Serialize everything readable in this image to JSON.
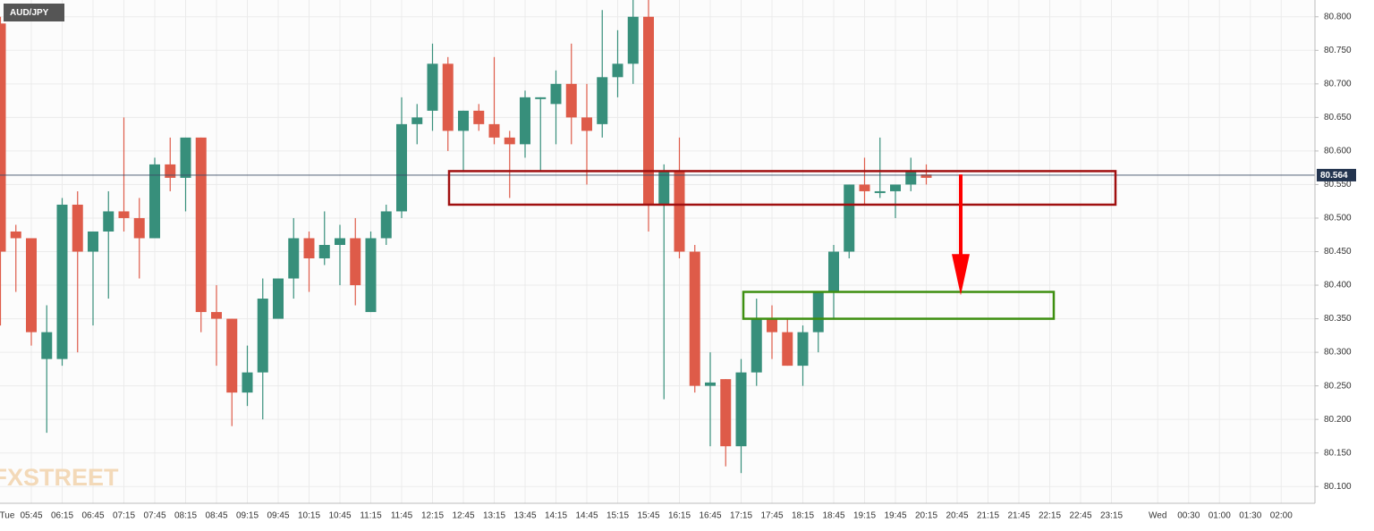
{
  "chart_data": {
    "type": "candlestick",
    "title": "AUD/JPY",
    "watermark": "FXSTREET",
    "up_color": "#378f7b",
    "down_color": "#de5b49",
    "x": [
      "05:15",
      "05:30",
      "05:45",
      "06:00",
      "06:15",
      "06:30",
      "06:45",
      "07:00",
      "07:15",
      "07:30",
      "07:45",
      "08:00",
      "08:15",
      "08:30",
      "08:45",
      "09:00",
      "09:15",
      "09:30",
      "09:45",
      "10:00",
      "10:15",
      "10:30",
      "10:45",
      "11:00",
      "11:15",
      "11:30",
      "11:45",
      "12:00",
      "12:15",
      "12:30",
      "12:45",
      "13:00",
      "13:15",
      "13:30",
      "13:45",
      "14:00",
      "14:15",
      "14:30",
      "14:45",
      "15:00",
      "15:15",
      "15:30",
      "15:45",
      "16:00",
      "16:15",
      "16:30",
      "16:45",
      "17:00",
      "17:15",
      "17:30",
      "17:45",
      "18:00",
      "18:15",
      "18:30",
      "18:45",
      "19:00",
      "19:15",
      "19:30",
      "19:45",
      "20:00",
      "20:15"
    ],
    "open": [
      80.79,
      80.48,
      80.47,
      80.29,
      80.29,
      80.52,
      80.45,
      80.48,
      80.51,
      80.5,
      80.47,
      80.58,
      80.56,
      80.62,
      80.36,
      80.35,
      80.24,
      80.27,
      80.35,
      80.41,
      80.47,
      80.44,
      80.46,
      80.47,
      80.36,
      80.47,
      80.51,
      80.64,
      80.66,
      80.73,
      80.63,
      80.66,
      80.64,
      80.62,
      80.61,
      80.68,
      80.67,
      80.7,
      80.65,
      80.64,
      80.71,
      80.73,
      80.8,
      80.52,
      80.57,
      80.45,
      80.25,
      80.26,
      80.16,
      80.27,
      80.35,
      80.33,
      80.28,
      80.33,
      80.39,
      80.45,
      80.55,
      80.54,
      80.54,
      80.55,
      80.565
    ],
    "high": [
      80.8,
      80.49,
      80.47,
      80.37,
      80.53,
      80.54,
      80.48,
      80.54,
      80.65,
      80.53,
      80.59,
      80.62,
      80.62,
      80.62,
      80.4,
      80.35,
      80.31,
      80.41,
      80.41,
      80.5,
      80.48,
      80.51,
      80.49,
      80.5,
      80.48,
      80.52,
      80.68,
      80.67,
      80.76,
      80.74,
      80.66,
      80.67,
      80.74,
      80.63,
      80.69,
      80.68,
      80.72,
      80.76,
      80.7,
      80.81,
      80.78,
      80.83,
      80.83,
      80.58,
      80.62,
      80.46,
      80.3,
      80.26,
      80.29,
      80.38,
      80.37,
      80.35,
      80.34,
      80.39,
      80.46,
      80.55,
      80.59,
      80.62,
      80.55,
      80.59,
      80.58
    ],
    "low": [
      80.34,
      80.39,
      80.31,
      80.18,
      80.28,
      80.3,
      80.34,
      80.38,
      80.48,
      80.41,
      80.47,
      80.54,
      80.51,
      80.33,
      80.28,
      80.19,
      80.22,
      80.2,
      80.35,
      80.38,
      80.39,
      80.43,
      80.4,
      80.37,
      80.36,
      80.46,
      80.5,
      80.61,
      80.63,
      80.6,
      80.57,
      80.63,
      80.61,
      80.53,
      80.59,
      80.57,
      80.61,
      80.61,
      80.55,
      80.62,
      80.68,
      80.7,
      80.48,
      80.23,
      80.44,
      80.24,
      80.16,
      80.13,
      80.12,
      80.25,
      80.29,
      80.28,
      80.25,
      80.3,
      80.35,
      80.44,
      80.52,
      80.53,
      80.5,
      80.54,
      80.55
    ],
    "close": [
      80.45,
      80.47,
      80.33,
      80.33,
      80.52,
      80.45,
      80.48,
      80.51,
      80.5,
      80.47,
      80.58,
      80.56,
      80.62,
      80.36,
      80.35,
      80.24,
      80.27,
      80.38,
      80.41,
      80.47,
      80.44,
      80.46,
      80.47,
      80.4,
      80.47,
      80.51,
      80.64,
      80.65,
      80.73,
      80.63,
      80.66,
      80.64,
      80.62,
      80.61,
      80.68,
      80.68,
      80.7,
      80.65,
      80.63,
      80.71,
      80.73,
      80.8,
      80.52,
      80.57,
      80.45,
      80.25,
      80.255,
      80.16,
      80.27,
      80.35,
      80.33,
      80.28,
      80.33,
      80.39,
      80.45,
      80.55,
      80.54,
      80.54,
      80.55,
      80.57,
      80.56
    ],
    "last_price": {
      "value": 80.564,
      "label": "80.564"
    },
    "zones": [
      {
        "ymin": 80.52,
        "ymax": 80.57,
        "color": "#a01010"
      },
      {
        "ymin": 80.35,
        "ymax": 80.39,
        "color": "#3d8f10"
      }
    ],
    "arrow": {
      "from": 80.565,
      "to": 80.385,
      "color": "#ff0000"
    },
    "ylim": [
      80.075,
      80.825
    ],
    "yticks": [
      {
        "value": 80.1,
        "label": "80.100"
      },
      {
        "value": 80.15,
        "label": "80.150"
      },
      {
        "value": 80.2,
        "label": "80.200"
      },
      {
        "value": 80.25,
        "label": "80.250"
      },
      {
        "value": 80.3,
        "label": "80.300"
      },
      {
        "value": 80.35,
        "label": "80.350"
      },
      {
        "value": 80.4,
        "label": "80.400"
      },
      {
        "value": 80.45,
        "label": "80.450"
      },
      {
        "value": 80.5,
        "label": "80.500"
      },
      {
        "value": 80.55,
        "label": "80.550"
      },
      {
        "value": 80.6,
        "label": "80.600"
      },
      {
        "value": 80.65,
        "label": "80.650"
      },
      {
        "value": 80.7,
        "label": "80.700"
      },
      {
        "value": 80.75,
        "label": "80.750"
      },
      {
        "value": 80.8,
        "label": "80.800"
      }
    ],
    "xticks": [
      "Tue",
      "05:45",
      "06:15",
      "06:45",
      "07:15",
      "07:45",
      "08:15",
      "08:45",
      "09:15",
      "09:45",
      "10:15",
      "10:45",
      "11:15",
      "11:45",
      "12:15",
      "12:45",
      "13:15",
      "13:45",
      "14:15",
      "14:45",
      "15:15",
      "15:45",
      "16:15",
      "16:45",
      "17:15",
      "17:45",
      "18:15",
      "18:45",
      "19:15",
      "19:45",
      "20:15",
      "20:45",
      "21:15",
      "21:45",
      "22:15",
      "22:45",
      "23:15",
      "Wed",
      "00:30",
      "01:00",
      "01:30",
      "02:00"
    ],
    "grid": true
  }
}
